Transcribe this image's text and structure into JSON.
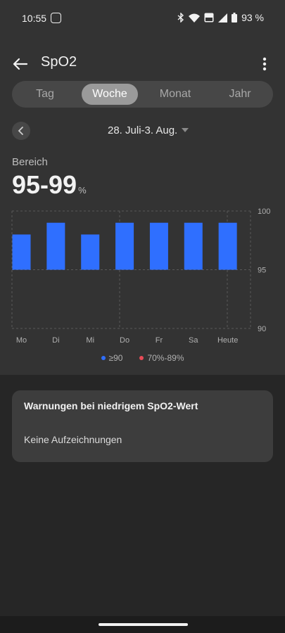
{
  "status_bar": {
    "time": "10:55",
    "battery": "93 %"
  },
  "header": {
    "title": "SpO2"
  },
  "tabs": [
    {
      "label": "Tag",
      "active": false
    },
    {
      "label": "Woche",
      "active": true
    },
    {
      "label": "Monat",
      "active": false
    },
    {
      "label": "Jahr",
      "active": false
    }
  ],
  "date_nav": {
    "range": "28. Juli-3. Aug."
  },
  "summary": {
    "label": "Bereich",
    "value": "95-99",
    "unit": "%"
  },
  "chart_data": {
    "type": "bar",
    "categories": [
      "Mo",
      "Di",
      "Mi",
      "Do",
      "Fr",
      "Sa",
      "Heute"
    ],
    "series": [
      {
        "name": "≥90",
        "low": [
          95,
          95,
          95,
          95,
          95,
          95,
          95
        ],
        "high": [
          98,
          99,
          98,
          99,
          99,
          99,
          99
        ]
      }
    ],
    "ylim": [
      90,
      100
    ],
    "yticks": [
      "100",
      "95",
      "90"
    ],
    "grid": true,
    "legend_position": "bottom",
    "colors": {
      "bar": "#2f6fff",
      "low": "#e84b57"
    }
  },
  "legend": [
    {
      "label": "≥90",
      "color": "#2f6fff"
    },
    {
      "label": "70%-89%",
      "color": "#e84b57"
    }
  ],
  "warnings_card": {
    "title": "Warnungen bei niedrigem SpO2-Wert",
    "body": "Keine Aufzeichnungen"
  }
}
